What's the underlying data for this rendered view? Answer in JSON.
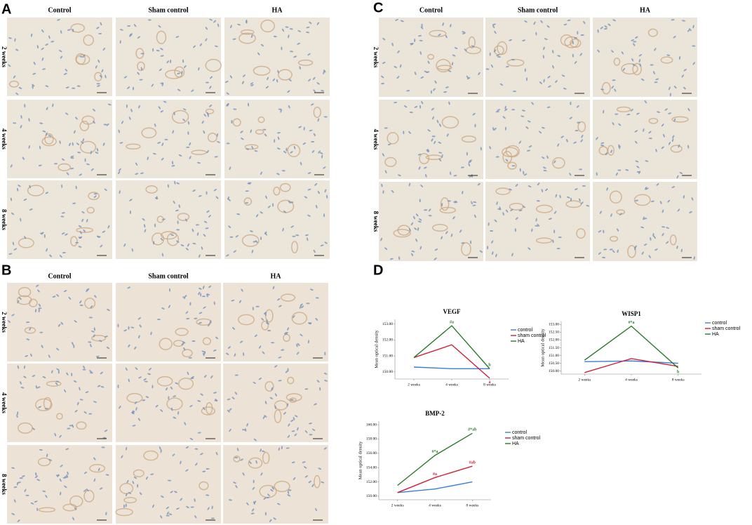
{
  "panels": [
    {
      "label": "A",
      "columns": [
        "Control",
        "Sham control",
        "HA"
      ],
      "rows": [
        "2 weeks",
        "4 weeks",
        "8 weeks"
      ]
    },
    {
      "label": "B",
      "columns": [
        "Control",
        "Sham control",
        "HA"
      ],
      "rows": [
        "2 weeks",
        "4 weeks",
        "8 weeks"
      ]
    },
    {
      "label": "C",
      "columns": [
        "Control",
        "Sham control",
        "HA"
      ],
      "rows": [
        "2 weeks",
        "4 weeks",
        "8 weeks"
      ]
    }
  ],
  "chart_panel_label": "D",
  "chart_data": [
    {
      "type": "line",
      "title": "VEGF",
      "ylabel": "Mean optical density",
      "categories": [
        "2 weeks",
        "4 weeks",
        "8 weeks"
      ],
      "series": [
        {
          "name": "control",
          "color": "#3a7fd5",
          "values": [
            150.3,
            150.2,
            150.2
          ],
          "labels": [
            null,
            null,
            null
          ]
        },
        {
          "name": "sham control",
          "color": "#d0203a",
          "values": [
            150.9,
            151.7,
            149.6
          ],
          "labels": [
            null,
            null,
            "a"
          ]
        },
        {
          "name": "HA",
          "color": "#2a7a2a",
          "values": [
            150.9,
            152.9,
            150.2
          ],
          "labels": [
            null,
            "#a",
            "b"
          ]
        }
      ],
      "ylim": [
        149.55,
        153.3
      ],
      "yticks": [
        {
          "value": 150,
          "label": "150.00"
        },
        {
          "value": 151,
          "label": "151.00"
        },
        {
          "value": 152,
          "label": "152.00"
        },
        {
          "value": 153,
          "label": "153.00"
        }
      ],
      "legend": "right"
    },
    {
      "type": "line",
      "title": "WISP1",
      "ylabel": "Mean optical density",
      "categories": [
        "2 weeks",
        "4 weeks",
        "8 weeks"
      ],
      "series": [
        {
          "name": "control",
          "color": "#3a7fd5",
          "values": [
            150.6,
            150.65,
            150.5
          ],
          "labels": [
            null,
            null,
            null
          ]
        },
        {
          "name": "sham control",
          "color": "#d0203a",
          "values": [
            149.9,
            150.8,
            150.3
          ],
          "labels": [
            null,
            null,
            null
          ]
        },
        {
          "name": "HA",
          "color": "#2a7a2a",
          "values": [
            150.7,
            152.9,
            150.2
          ],
          "labels": [
            null,
            "#*a",
            "b"
          ]
        }
      ],
      "ylim": [
        149.8,
        153.2
      ],
      "yticks": [
        {
          "value": 150,
          "label": "150.00"
        },
        {
          "value": 150.5,
          "label": "150.50"
        },
        {
          "value": 151,
          "label": "151.00"
        },
        {
          "value": 151.5,
          "label": "151.50"
        },
        {
          "value": 152,
          "label": "152.00"
        },
        {
          "value": 152.5,
          "label": "152.50"
        },
        {
          "value": 153,
          "label": "153.00"
        }
      ],
      "legend": "right"
    },
    {
      "type": "line",
      "title": "BMP-2",
      "ylabel": "Mean optical density",
      "categories": [
        "2 weeks",
        "4 weeks",
        "8 weeks"
      ],
      "series": [
        {
          "name": "control",
          "color": "#3a7fd5",
          "values": [
            150.5,
            151.0,
            152.0
          ],
          "labels": [
            null,
            null,
            null
          ]
        },
        {
          "name": "sham control",
          "color": "#d0203a",
          "values": [
            150.5,
            152.6,
            154.2
          ],
          "labels": [
            null,
            "#a",
            "#ab"
          ]
        },
        {
          "name": "HA",
          "color": "#2a7a2a",
          "values": [
            151.5,
            155.7,
            158.8
          ],
          "labels": [
            null,
            "#*a",
            "#*ab"
          ]
        }
      ],
      "ylim": [
        149.5,
        160.5
      ],
      "yticks": [
        {
          "value": 150,
          "label": "150.00"
        },
        {
          "value": 152,
          "label": "152.00"
        },
        {
          "value": 154,
          "label": "154.00"
        },
        {
          "value": 156,
          "label": "156.00"
        },
        {
          "value": 158,
          "label": "158.00"
        },
        {
          "value": 160,
          "label": "160.00"
        }
      ],
      "legend": "right"
    }
  ]
}
